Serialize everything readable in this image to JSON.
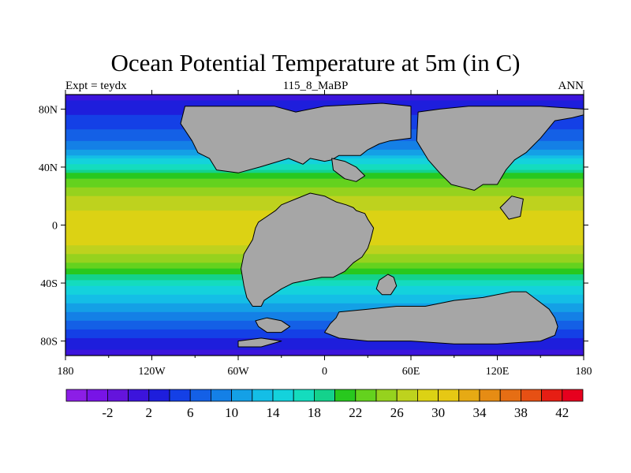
{
  "title": "Ocean Potential Temperature at 5m (in C)",
  "subtitle_left": "Expt = teydx",
  "subtitle_center": "115_8_MaBP",
  "subtitle_right": "ANN",
  "chart_data": {
    "type": "heatmap",
    "projection": "cylindrical-equidistant",
    "x_range": [
      -180,
      180
    ],
    "y_range": [
      -90,
      90
    ],
    "x_ticks": [
      {
        "value": -180,
        "label": "180"
      },
      {
        "value": -120,
        "label": "120W"
      },
      {
        "value": -60,
        "label": "60W"
      },
      {
        "value": 0,
        "label": "0"
      },
      {
        "value": 60,
        "label": "60E"
      },
      {
        "value": 120,
        "label": "120E"
      },
      {
        "value": 180,
        "label": "180"
      }
    ],
    "y_ticks": [
      {
        "value": 80,
        "label": "80N"
      },
      {
        "value": 40,
        "label": "40N"
      },
      {
        "value": 0,
        "label": "0"
      },
      {
        "value": -40,
        "label": "40S"
      },
      {
        "value": -80,
        "label": "80S"
      }
    ],
    "land_color": "#a6a6a6",
    "colorbar": {
      "levels": [
        -4,
        -2,
        0,
        2,
        4,
        6,
        8,
        10,
        12,
        14,
        16,
        18,
        20,
        22,
        24,
        26,
        28,
        30,
        32,
        34,
        36,
        38,
        40,
        42
      ],
      "labeled": [
        -2,
        2,
        6,
        10,
        14,
        18,
        22,
        26,
        30,
        34,
        38,
        42
      ],
      "colors": [
        "#8c1ee6",
        "#7814e6",
        "#6414dc",
        "#3c14dc",
        "#1e1edc",
        "#1440e6",
        "#1460e6",
        "#1480e6",
        "#14a0e6",
        "#14bee6",
        "#14d2dc",
        "#14dcbe",
        "#14d28c",
        "#28c81e",
        "#64d21e",
        "#96d21e",
        "#bed21e",
        "#dcd214",
        "#e6c814",
        "#e6aa14",
        "#e68c14",
        "#e66e14",
        "#e65014",
        "#e61e14",
        "#e6001e"
      ]
    },
    "sst_profile": {
      "lat": [
        -90,
        -80,
        -70,
        -60,
        -50,
        -40,
        -30,
        -20,
        -10,
        0,
        10,
        20,
        30,
        40,
        50,
        60,
        70,
        80,
        90
      ],
      "temp": [
        1,
        3,
        7,
        10,
        13,
        17,
        22,
        26,
        29,
        30,
        28,
        26,
        23,
        17,
        11,
        7,
        5,
        3,
        1
      ]
    },
    "continents": [
      {
        "name": "laurasia-west",
        "lonlat": [
          [
            -97,
            82
          ],
          [
            -35,
            82
          ],
          [
            -20,
            78
          ],
          [
            0,
            82
          ],
          [
            40,
            84
          ],
          [
            60,
            82
          ],
          [
            60,
            60
          ],
          [
            45,
            58
          ],
          [
            38,
            56
          ],
          [
            30,
            52
          ],
          [
            25,
            48
          ],
          [
            10,
            48
          ],
          [
            5,
            45
          ],
          [
            0,
            44
          ],
          [
            -10,
            46
          ],
          [
            -15,
            42
          ],
          [
            -25,
            46
          ],
          [
            -45,
            40
          ],
          [
            -60,
            36
          ],
          [
            -75,
            38
          ],
          [
            -80,
            46
          ],
          [
            -88,
            50
          ],
          [
            -92,
            58
          ],
          [
            -96,
            64
          ],
          [
            -100,
            70
          ]
        ]
      },
      {
        "name": "laurasia-east",
        "lonlat": [
          [
            65,
            78
          ],
          [
            80,
            80
          ],
          [
            100,
            82
          ],
          [
            150,
            82
          ],
          [
            180,
            80
          ],
          [
            180,
            76
          ],
          [
            172,
            74
          ],
          [
            160,
            72
          ],
          [
            150,
            60
          ],
          [
            140,
            50
          ],
          [
            132,
            45
          ],
          [
            126,
            38
          ],
          [
            120,
            28
          ],
          [
            110,
            28
          ],
          [
            104,
            24
          ],
          [
            96,
            26
          ],
          [
            88,
            28
          ],
          [
            80,
            36
          ],
          [
            72,
            45
          ],
          [
            64,
            58
          ]
        ]
      },
      {
        "name": "gondwana-west",
        "lonlat": [
          [
            -10,
            22
          ],
          [
            0,
            20
          ],
          [
            8,
            16
          ],
          [
            15,
            14
          ],
          [
            20,
            12
          ],
          [
            22,
            10
          ],
          [
            28,
            8
          ],
          [
            30,
            4
          ],
          [
            34,
            -2
          ],
          [
            32,
            -10
          ],
          [
            30,
            -16
          ],
          [
            26,
            -22
          ],
          [
            20,
            -26
          ],
          [
            14,
            -32
          ],
          [
            6,
            -36
          ],
          [
            -2,
            -36
          ],
          [
            -12,
            -38
          ],
          [
            -22,
            -40
          ],
          [
            -30,
            -44
          ],
          [
            -36,
            -48
          ],
          [
            -42,
            -52
          ],
          [
            -44,
            -56
          ],
          [
            -50,
            -56
          ],
          [
            -54,
            -50
          ],
          [
            -56,
            -42
          ],
          [
            -58,
            -30
          ],
          [
            -56,
            -20
          ],
          [
            -50,
            -10
          ],
          [
            -48,
            -2
          ],
          [
            -46,
            2
          ],
          [
            -40,
            6
          ],
          [
            -34,
            10
          ],
          [
            -30,
            14
          ],
          [
            -20,
            18
          ]
        ]
      },
      {
        "name": "antarctica",
        "lonlat": [
          [
            10,
            -60
          ],
          [
            30,
            -58
          ],
          [
            50,
            -56
          ],
          [
            70,
            -56
          ],
          [
            90,
            -52
          ],
          [
            110,
            -50
          ],
          [
            130,
            -46
          ],
          [
            140,
            -46
          ],
          [
            148,
            -52
          ],
          [
            156,
            -58
          ],
          [
            160,
            -64
          ],
          [
            162,
            -70
          ],
          [
            160,
            -76
          ],
          [
            150,
            -80
          ],
          [
            120,
            -82
          ],
          [
            90,
            -82
          ],
          [
            60,
            -80
          ],
          [
            30,
            -80
          ],
          [
            10,
            -78
          ],
          [
            0,
            -74
          ],
          [
            4,
            -68
          ],
          [
            8,
            -64
          ]
        ]
      },
      {
        "name": "indian-plate",
        "lonlat": [
          [
            38,
            -38
          ],
          [
            44,
            -34
          ],
          [
            48,
            -36
          ],
          [
            50,
            -42
          ],
          [
            46,
            -48
          ],
          [
            40,
            -48
          ],
          [
            36,
            -44
          ]
        ]
      },
      {
        "name": "southern-island",
        "lonlat": [
          [
            -48,
            -66
          ],
          [
            -40,
            -64
          ],
          [
            -30,
            -66
          ],
          [
            -24,
            -70
          ],
          [
            -30,
            -74
          ],
          [
            -40,
            -74
          ],
          [
            -46,
            -70
          ]
        ]
      },
      {
        "name": "south-ledge",
        "lonlat": [
          [
            -60,
            -80
          ],
          [
            -44,
            -78
          ],
          [
            -30,
            -80
          ],
          [
            -44,
            -84
          ],
          [
            -60,
            -84
          ]
        ]
      },
      {
        "name": "european-islands",
        "lonlat": [
          [
            5,
            46
          ],
          [
            14,
            44
          ],
          [
            22,
            40
          ],
          [
            28,
            34
          ],
          [
            22,
            30
          ],
          [
            14,
            32
          ],
          [
            6,
            38
          ]
        ]
      },
      {
        "name": "far-east-island",
        "lonlat": [
          [
            122,
            12
          ],
          [
            130,
            20
          ],
          [
            138,
            18
          ],
          [
            136,
            6
          ],
          [
            128,
            4
          ]
        ]
      }
    ]
  }
}
